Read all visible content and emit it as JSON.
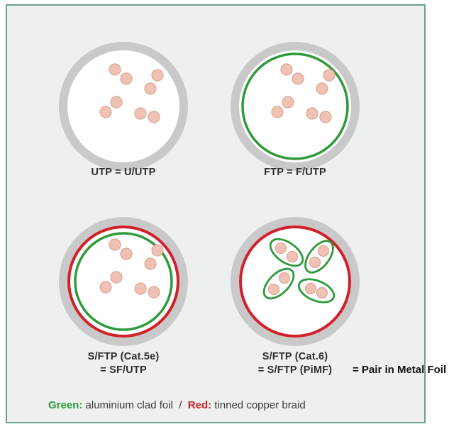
{
  "cables": [
    {
      "id": "utp",
      "label_lines": [
        "UTP = U/UTP"
      ],
      "foil_ring": false,
      "braid_ring": false,
      "pair_foils": false
    },
    {
      "id": "ftp",
      "label_lines": [
        "FTP = F/UTP"
      ],
      "foil_ring": true,
      "braid_ring": false,
      "pair_foils": false
    },
    {
      "id": "sftp-cat5e",
      "label_lines": [
        "S/FTP (Cat.5e)",
        "= SF/UTP"
      ],
      "foil_ring": true,
      "braid_ring": true,
      "pair_foils": false
    },
    {
      "id": "sftp-cat6",
      "label_lines": [
        "S/FTP (Cat.6)",
        "= S/FTP (PiMF)"
      ],
      "foil_ring": false,
      "braid_ring": true,
      "pair_foils": true
    }
  ],
  "annotation": "= Pair in Metal Foil",
  "legend": {
    "green_key": "Green:",
    "green_text": " aluminium clad foil",
    "separator": "  /  ",
    "red_key": "Red:",
    "red_text": " tinned copper braid"
  },
  "colors": {
    "jacket": "#c9c9c9",
    "foil": "#2e9a3a",
    "braid": "#d0202a",
    "conductor_fill": "#f0c2b4",
    "conductor_edge": "#dca595",
    "panel_border": "#6aa089"
  }
}
